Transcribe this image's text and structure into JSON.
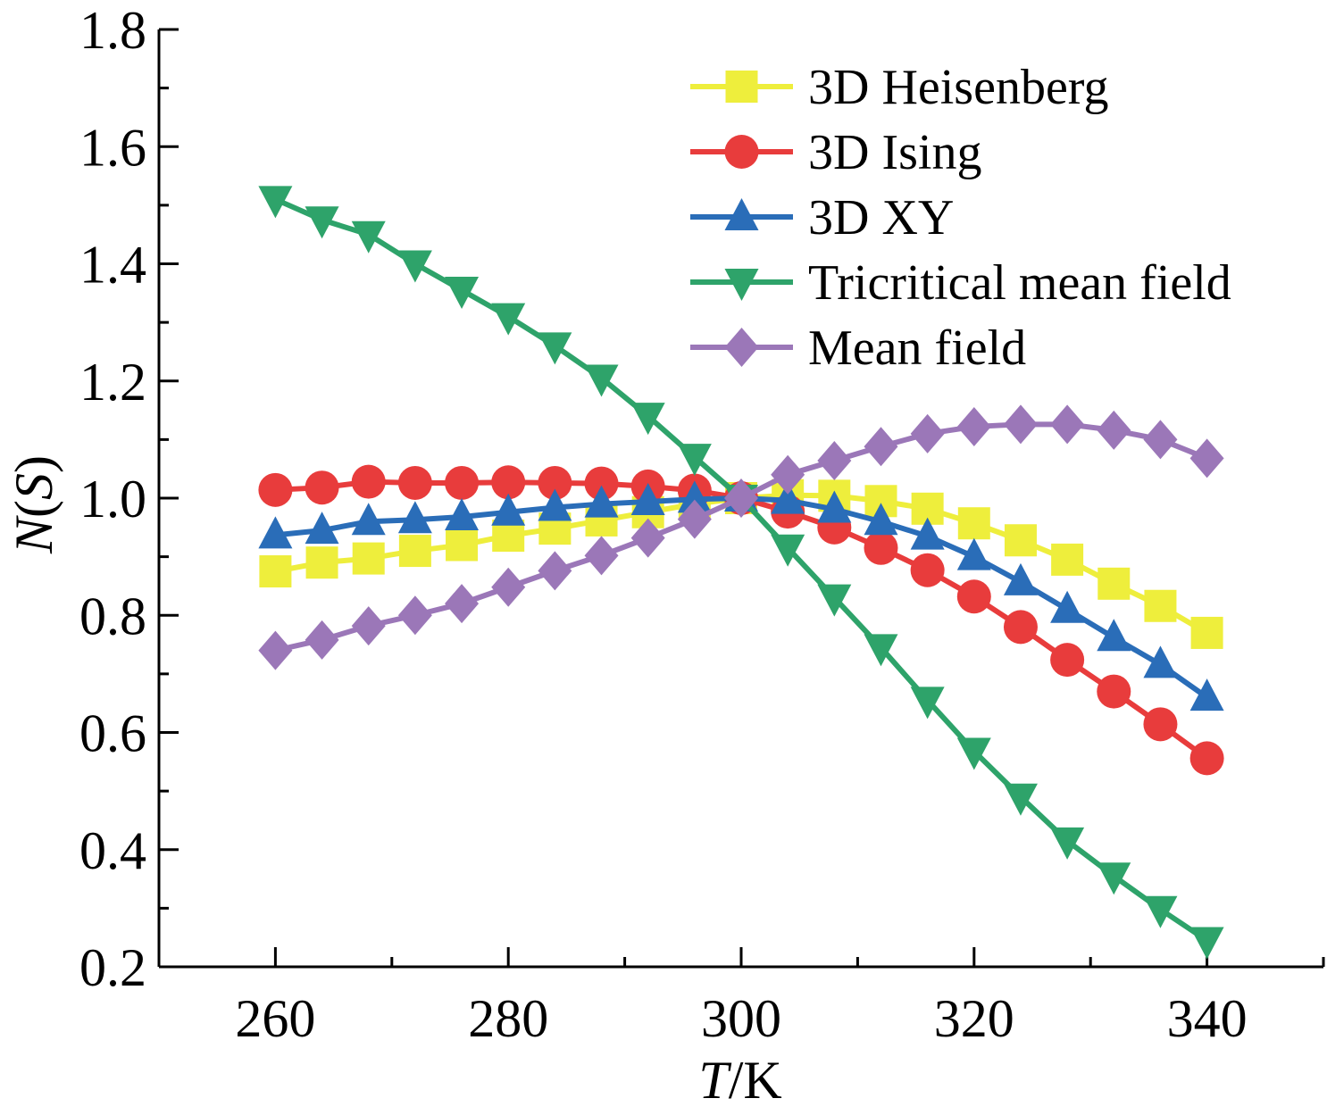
{
  "chart_data": {
    "type": "line",
    "xlabel_italic": "T",
    "xlabel_unit": "/K",
    "ylabel_italic_n": "N",
    "ylabel_open": "(",
    "ylabel_italic_s": "S",
    "ylabel_close": ")",
    "xlim": [
      250,
      350
    ],
    "ylim": [
      0.2,
      1.8
    ],
    "xticks": [
      260,
      280,
      300,
      320,
      340
    ],
    "xtick_labels": [
      "260",
      "280",
      "300",
      "320",
      "340"
    ],
    "yticks": [
      0.2,
      0.4,
      0.6,
      0.8,
      1.0,
      1.2,
      1.4,
      1.6,
      1.8
    ],
    "ytick_labels": [
      "0.2",
      "0.4",
      "0.6",
      "0.8",
      "1.0",
      "1.2",
      "1.4",
      "1.6",
      "1.8"
    ],
    "grid": false,
    "legend_position": "top-right",
    "x": [
      260,
      264,
      268,
      272,
      276,
      280,
      284,
      288,
      292,
      296,
      300,
      304,
      308,
      312,
      316,
      320,
      324,
      328,
      332,
      336,
      340
    ],
    "series": [
      {
        "name": "3D Heisenberg",
        "color": "#eeee3c",
        "marker": "square",
        "values": [
          0.875,
          0.89,
          0.897,
          0.91,
          0.92,
          0.936,
          0.948,
          0.962,
          0.976,
          0.99,
          1.0,
          1.005,
          1.004,
          0.995,
          0.982,
          0.957,
          0.928,
          0.895,
          0.854,
          0.816,
          0.77
        ]
      },
      {
        "name": "3D Ising",
        "color": "#e83c3c",
        "marker": "circle",
        "values": [
          1.014,
          1.018,
          1.028,
          1.026,
          1.026,
          1.027,
          1.026,
          1.025,
          1.02,
          1.013,
          1.0,
          0.977,
          0.95,
          0.915,
          0.877,
          0.832,
          0.78,
          0.724,
          0.67,
          0.614,
          0.556
        ]
      },
      {
        "name": "3D XY",
        "color": "#2a6db8",
        "marker": "triangle-up",
        "values": [
          0.937,
          0.945,
          0.96,
          0.963,
          0.968,
          0.976,
          0.984,
          0.99,
          0.994,
          0.998,
          1.0,
          0.996,
          0.981,
          0.96,
          0.935,
          0.9,
          0.857,
          0.81,
          0.762,
          0.716,
          0.66
        ]
      },
      {
        "name": "Tricritical mean field",
        "color": "#2ea36a",
        "marker": "triangle-down",
        "values": [
          1.51,
          1.475,
          1.45,
          1.4,
          1.355,
          1.31,
          1.26,
          1.205,
          1.14,
          1.07,
          1.0,
          0.915,
          0.83,
          0.745,
          0.655,
          0.568,
          0.49,
          0.415,
          0.355,
          0.298,
          0.245
        ]
      },
      {
        "name": "Mean field",
        "color": "#9b77b8",
        "marker": "diamond",
        "values": [
          0.74,
          0.758,
          0.782,
          0.8,
          0.82,
          0.848,
          0.876,
          0.902,
          0.932,
          0.964,
          1.0,
          1.04,
          1.064,
          1.088,
          1.11,
          1.122,
          1.126,
          1.126,
          1.116,
          1.1,
          1.068
        ]
      }
    ]
  }
}
